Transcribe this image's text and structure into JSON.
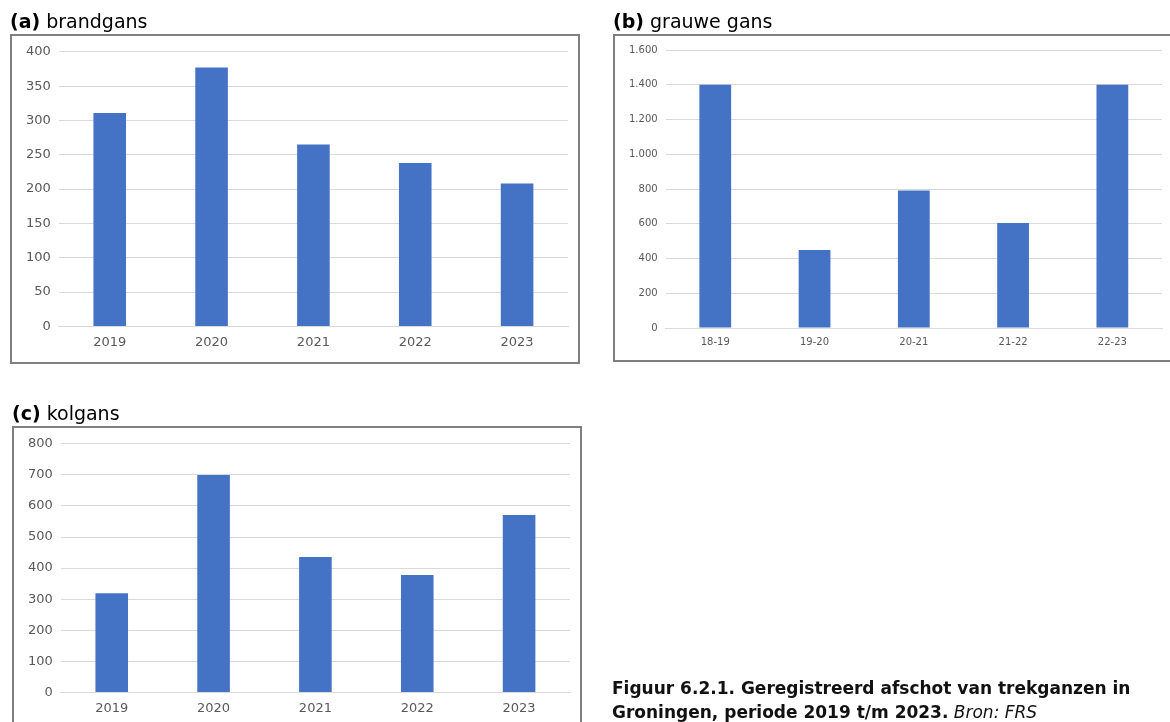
{
  "chart_data": [
    {
      "type": "bar",
      "title": "(a) brandgans",
      "categories": [
        "2019",
        "2020",
        "2021",
        "2022",
        "2023"
      ],
      "values": [
        311,
        377,
        265,
        238,
        208
      ],
      "color": "#4472c4",
      "ylim": [
        0,
        400
      ],
      "yticks": [
        0,
        50,
        100,
        150,
        200,
        250,
        300,
        350,
        400
      ],
      "grid": "y"
    },
    {
      "type": "bar",
      "title": "(b) grauwe gans",
      "categories": [
        "18-19",
        "19-20",
        "20-21",
        "21-22",
        "22-23"
      ],
      "values": [
        1400,
        449,
        792,
        605,
        1400
      ],
      "color": "#4472c4",
      "ylim": [
        0,
        1600
      ],
      "yticks": [
        0,
        200,
        400,
        600,
        800,
        {
          "value": 1000,
          "label": "1.000"
        },
        {
          "value": 1200,
          "label": "1.200"
        },
        {
          "value": 1400,
          "label": "1.400"
        },
        {
          "value": 1600,
          "label": "1.600"
        }
      ],
      "grid": "y"
    },
    {
      "type": "bar",
      "title": "(c) kolgans",
      "categories": [
        "2019",
        "2020",
        "2021",
        "2022",
        "2023"
      ],
      "values": [
        319,
        700,
        436,
        378,
        571
      ],
      "color": "#4472c4",
      "ylim": [
        0,
        800
      ],
      "yticks": [
        0,
        100,
        200,
        300,
        400,
        500,
        600,
        700,
        800
      ],
      "grid": "y"
    },
    {
      "type": "other",
      "annotations": [
        "Figuur 6.2.1. Geregistreerd afschot van trekganzen in Groningen, periode 2019 t/m 2023.",
        "Bron: FRS"
      ]
    }
  ]
}
